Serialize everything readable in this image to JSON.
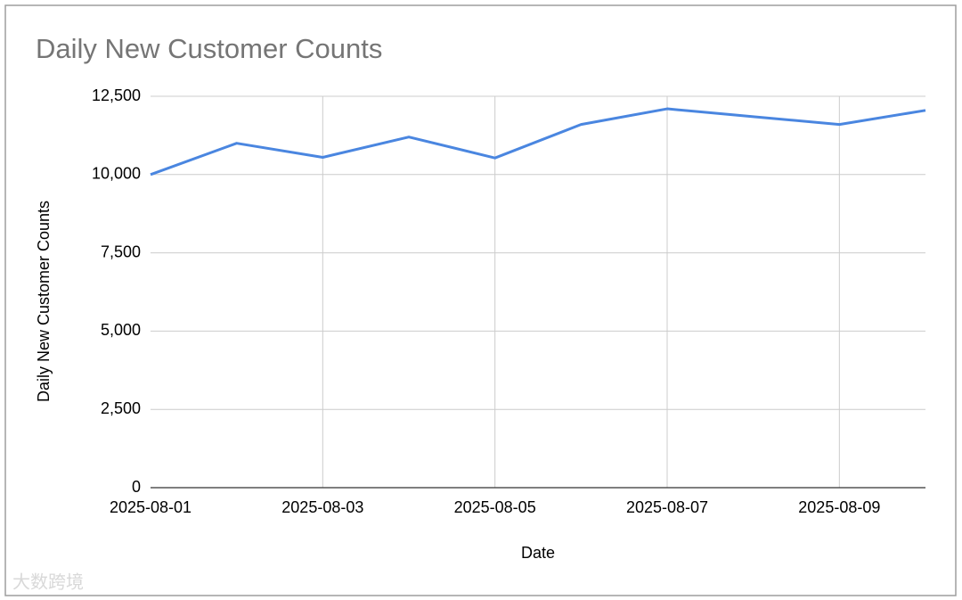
{
  "chart_data": {
    "type": "line",
    "title": "Daily New Customer Counts",
    "x_label": "Date",
    "y_label": "Daily New Customer Counts",
    "categories": [
      "2025-08-01",
      null,
      "2025-08-03",
      null,
      "2025-08-05",
      null,
      "2025-08-07",
      null,
      "2025-08-09",
      null
    ],
    "values": [
      10000,
      11000,
      10550,
      11200,
      10530,
      11600,
      12100,
      11850,
      11600,
      12050
    ],
    "color": "#4a86e0",
    "ylim": [
      0,
      12500
    ],
    "yticks": [
      0,
      {
        "value": 2500,
        "label": "2,500"
      },
      {
        "value": 5000,
        "label": "5,000"
      },
      {
        "value": 7500,
        "label": "7,500"
      },
      {
        "value": 10000,
        "label": "10,000"
      },
      {
        "value": 12500,
        "label": "12,500"
      }
    ],
    "grid": true,
    "watermark": "大数跨境"
  }
}
